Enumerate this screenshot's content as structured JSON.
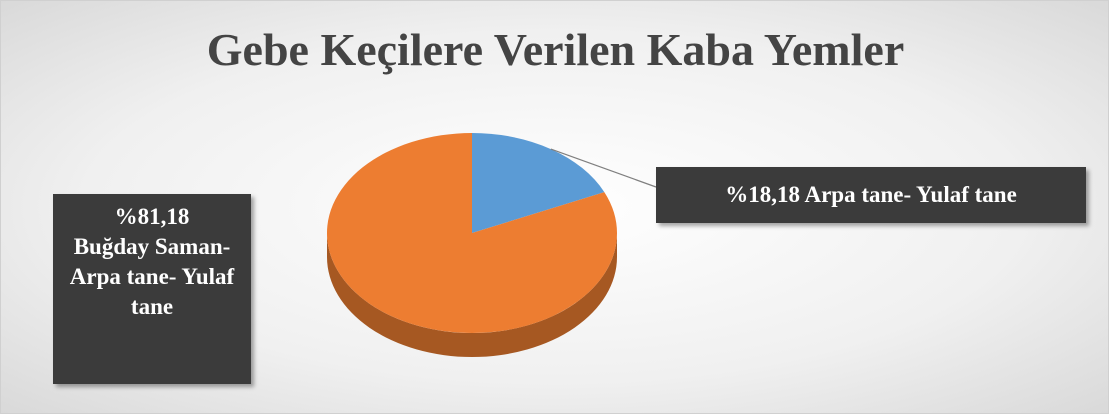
{
  "chart_data": {
    "type": "pie",
    "title": "Gebe Keçilere Verilen Kaba Yemler",
    "categories": [
      "Arpa tane- Yulaf tane",
      "Buğday Saman- Arpa tane- Yulaf tane"
    ],
    "values": [
      18.18,
      81.18
    ],
    "value_labels": [
      "%18,18",
      "%81,18"
    ],
    "colors": [
      "#5b9bd5",
      "#ed7d31"
    ]
  }
}
